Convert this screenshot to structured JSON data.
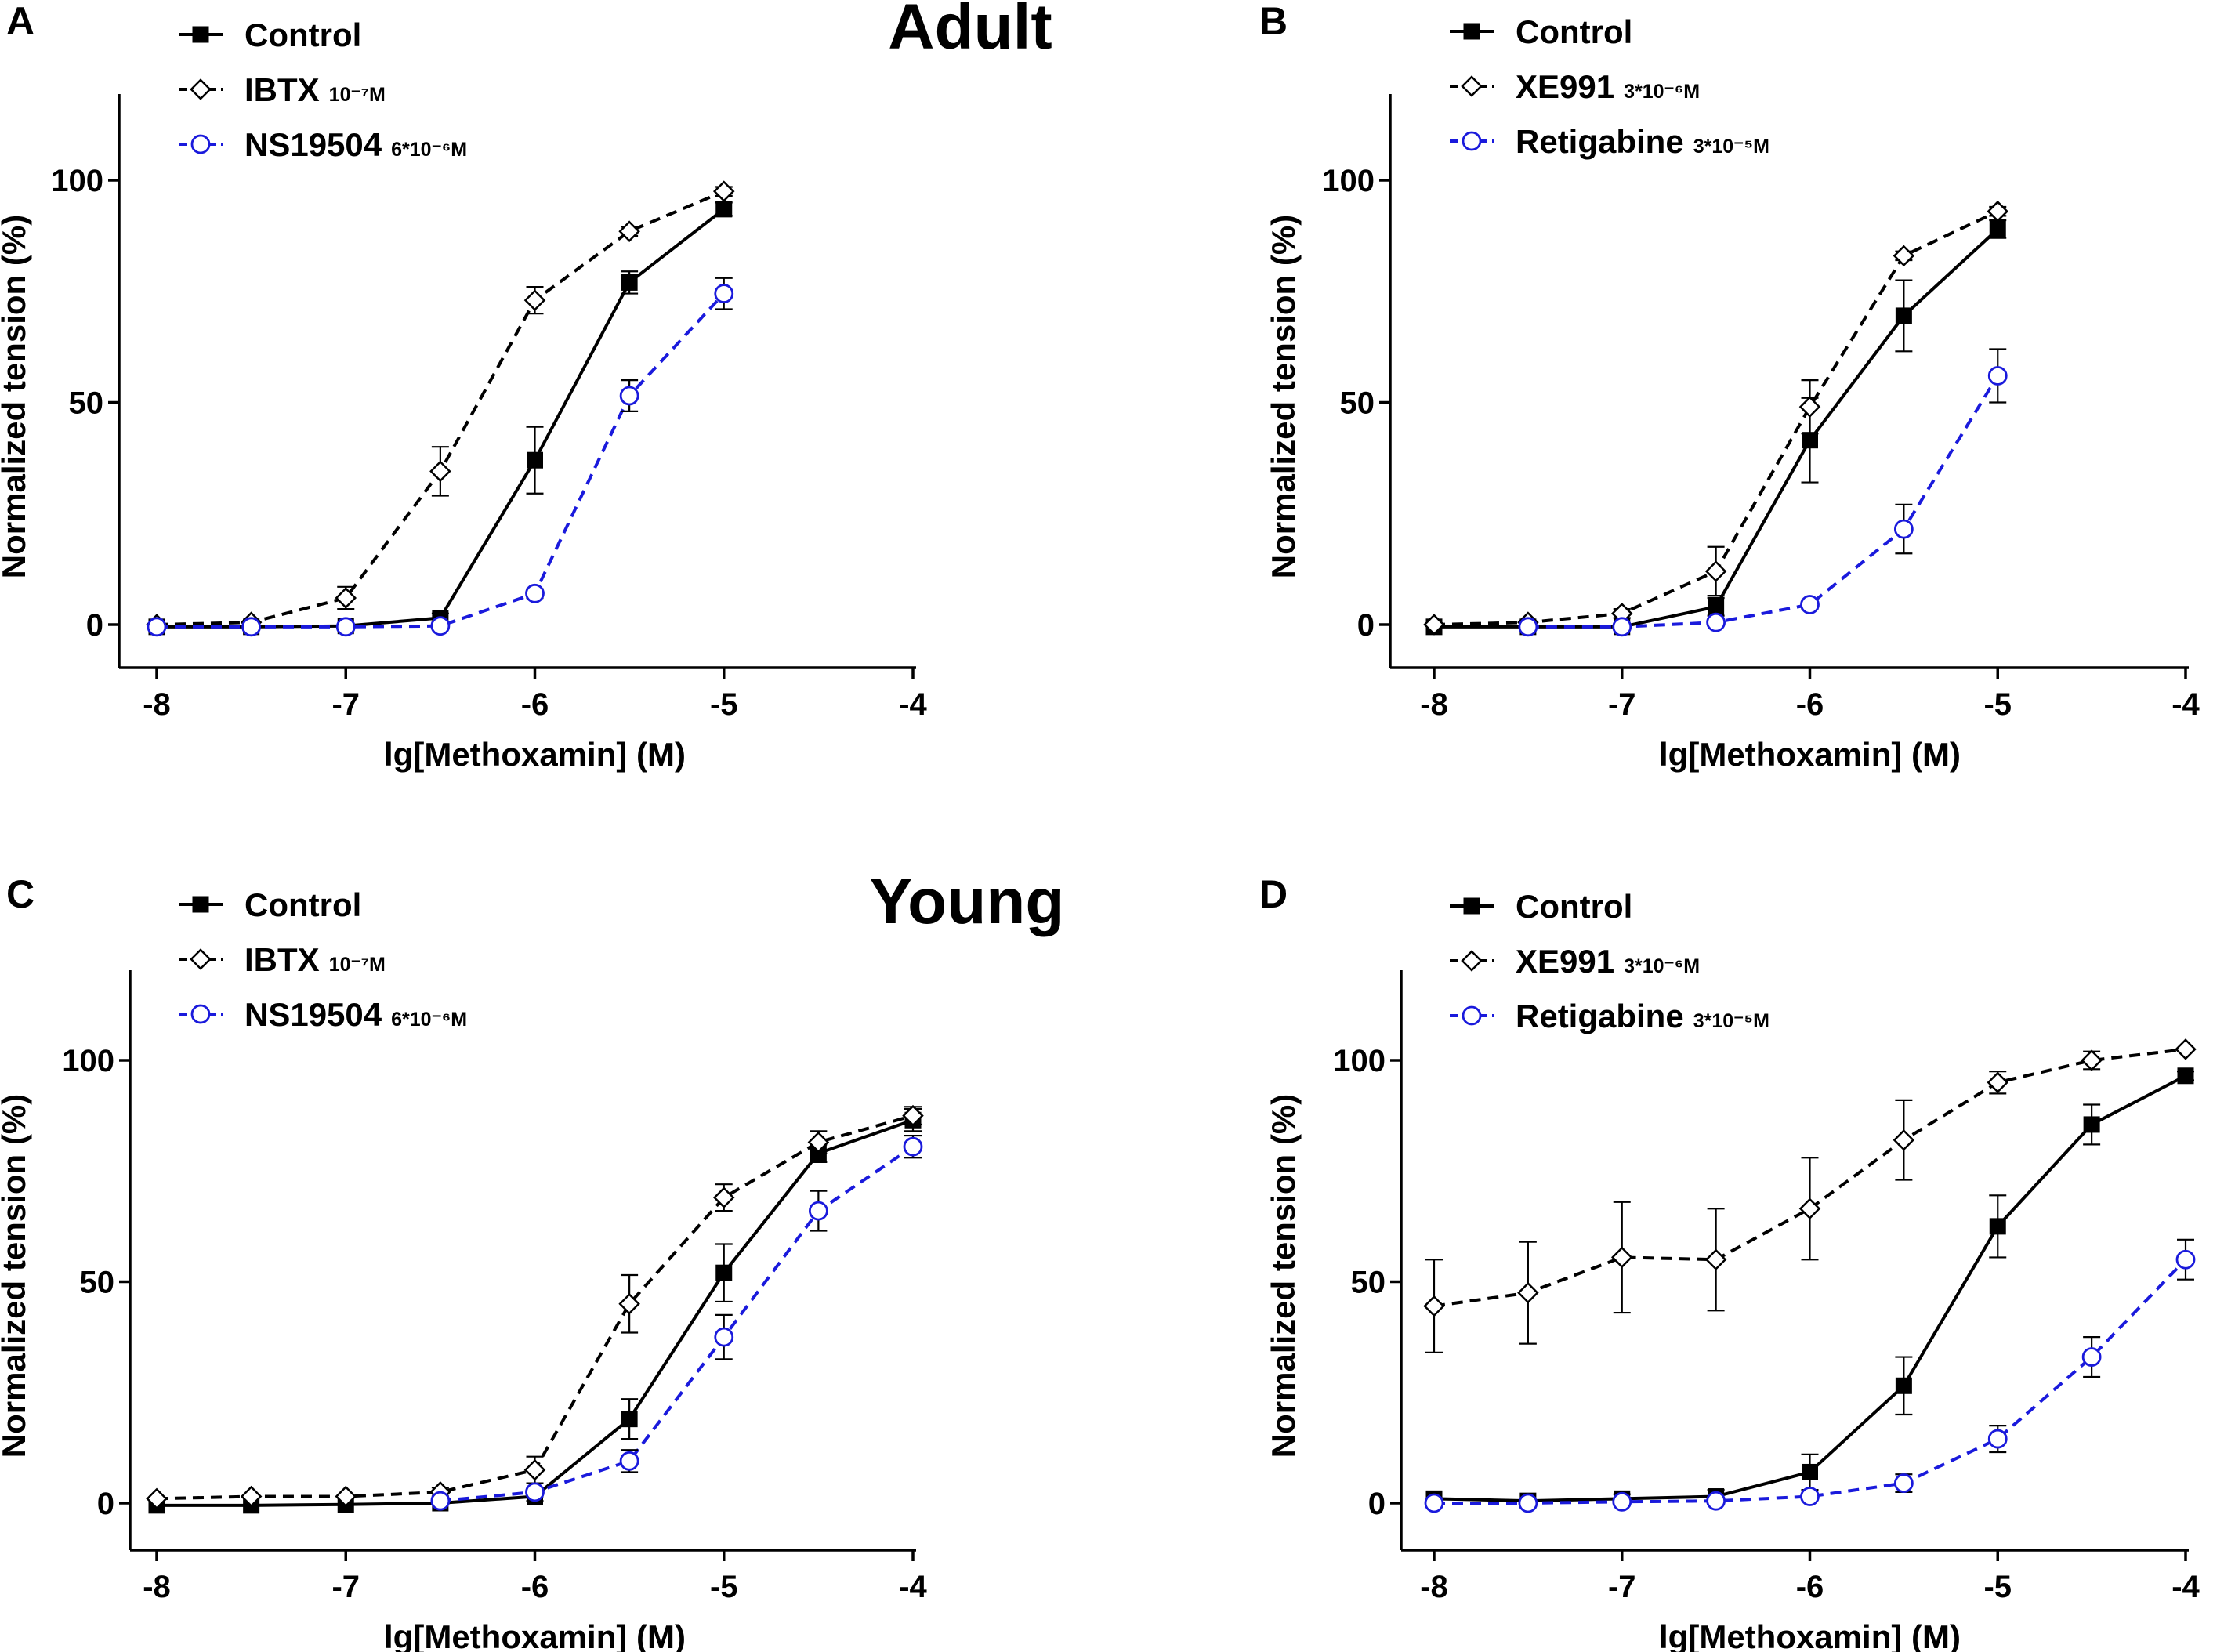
{
  "figure": {
    "title_adult": "Adult",
    "title_young": "Young"
  },
  "colors": {
    "control": "#000000",
    "blocker": "#000000",
    "opener": "#1a1adc"
  },
  "chart_data": [
    {
      "id": "A",
      "panel_label": "A",
      "type": "line",
      "xlabel": "lg[Methoxamin] (M)",
      "ylabel": "Normalized tension (%)",
      "xlim": [
        -8,
        -4
      ],
      "ylim": [
        -5,
        120
      ],
      "xticks": [
        -8,
        -7,
        -6,
        -5,
        -4
      ],
      "yticks": [
        0,
        50,
        100
      ],
      "xtick_labels": [
        "-8",
        "-7",
        "-6",
        "-5",
        "-4"
      ],
      "ytick_labels": [
        "0",
        "50",
        "100"
      ],
      "legend_position": "top-left",
      "series": [
        {
          "name": "Control",
          "sub": "",
          "style": "control",
          "x": [
            -8,
            -7.5,
            -7,
            -6.5,
            -6,
            -5.5,
            -5
          ],
          "y": [
            -0.5,
            -0.5,
            -0.3,
            1.5,
            37,
            77,
            93.5
          ],
          "err": [
            0.5,
            0.5,
            0.5,
            1,
            7.5,
            2.5,
            1.5
          ]
        },
        {
          "name": "IBTX",
          "sub": "10⁻⁷M",
          "style": "blocker",
          "x": [
            -8,
            -7.5,
            -7,
            -6.5,
            -6,
            -5.5,
            -5
          ],
          "y": [
            0,
            0.5,
            6,
            34.5,
            73,
            88.5,
            97.5
          ],
          "err": [
            0.5,
            0.5,
            2.5,
            5.5,
            3,
            1,
            1
          ]
        },
        {
          "name": "NS19504",
          "sub": "6*10⁻⁶M",
          "style": "opener",
          "x": [
            -8,
            -7.5,
            -7,
            -6.5,
            -6,
            -5.5,
            -5
          ],
          "y": [
            -0.5,
            -0.5,
            -0.5,
            -0.3,
            7,
            51.5,
            74.5
          ],
          "err": [
            0.5,
            0.5,
            0.5,
            0.5,
            1,
            3.5,
            3.5
          ]
        }
      ]
    },
    {
      "id": "B",
      "panel_label": "B",
      "type": "line",
      "xlabel": "lg[Methoxamin] (M)",
      "ylabel": "Normalized tension (%)",
      "xlim": [
        -8,
        -4
      ],
      "ylim": [
        -5,
        120
      ],
      "xticks": [
        -8,
        -7,
        -6,
        -5,
        -4
      ],
      "yticks": [
        0,
        50,
        100
      ],
      "xtick_labels": [
        "-8",
        "-7",
        "-6",
        "-5",
        "-4"
      ],
      "ytick_labels": [
        "0",
        "50",
        "100"
      ],
      "legend_position": "top-left",
      "series": [
        {
          "name": "Control",
          "sub": "",
          "style": "control",
          "x": [
            -8,
            -7.5,
            -7,
            -6.5,
            -6,
            -5.5,
            -5
          ],
          "y": [
            -0.5,
            -0.5,
            -0.5,
            4,
            41.5,
            69.5,
            89
          ],
          "err": [
            0.5,
            0.5,
            0.5,
            2,
            9.5,
            8,
            2
          ]
        },
        {
          "name": "XE991",
          "sub": "3*10⁻⁶M",
          "style": "blocker",
          "x": [
            -8,
            -7.5,
            -7,
            -6.5,
            -6,
            -5.5,
            -5
          ],
          "y": [
            0,
            0.5,
            2.5,
            12,
            49,
            83,
            93
          ],
          "err": [
            0.5,
            0.5,
            1,
            5.5,
            6,
            1,
            1
          ]
        },
        {
          "name": "Retigabine",
          "sub": "3*10⁻⁵M",
          "style": "opener",
          "x": [
            -7.5,
            -7,
            -6.5,
            -6,
            -5.5,
            -5
          ],
          "y": [
            -0.5,
            -0.5,
            0.5,
            4.5,
            21.5,
            56
          ],
          "err": [
            0.5,
            0.5,
            0.5,
            1,
            5.5,
            6
          ]
        }
      ]
    },
    {
      "id": "C",
      "panel_label": "C",
      "type": "line",
      "xlabel": "lg[Methoxamin] (M)",
      "ylabel": "Normalized tension (%)",
      "xlim": [
        -8,
        -4
      ],
      "ylim": [
        -5,
        120
      ],
      "xticks": [
        -8,
        -7,
        -6,
        -5,
        -4
      ],
      "yticks": [
        0,
        50,
        100
      ],
      "xtick_labels": [
        "-8",
        "-7",
        "-6",
        "-5",
        "-4"
      ],
      "ytick_labels": [
        "0",
        "50",
        "100"
      ],
      "legend_position": "top-left",
      "series": [
        {
          "name": "Control",
          "sub": "",
          "style": "control",
          "x": [
            -8,
            -7.5,
            -7,
            -6.5,
            -6,
            -5.5,
            -5,
            -4.5,
            -4
          ],
          "y": [
            -0.5,
            -0.5,
            -0.3,
            0,
            1.5,
            19,
            52,
            79,
            86.5
          ],
          "err": [
            0.5,
            0.5,
            0.5,
            0.5,
            1,
            4.5,
            6.5,
            2,
            2.5
          ]
        },
        {
          "name": "IBTX",
          "sub": "10⁻⁷M",
          "style": "blocker",
          "x": [
            -8,
            -7.5,
            -7,
            -6.5,
            -6,
            -5.5,
            -5,
            -4.5,
            -4
          ],
          "y": [
            1,
            1.5,
            1.5,
            2.5,
            7.5,
            45,
            69,
            81.5,
            87.5
          ],
          "err": [
            0.5,
            0.5,
            0.5,
            1,
            3,
            6.5,
            3,
            2.5,
            2
          ]
        },
        {
          "name": "NS19504",
          "sub": "6*10⁻⁶M",
          "style": "opener",
          "x": [
            -6.5,
            -6,
            -5.5,
            -5,
            -4.5,
            -4
          ],
          "y": [
            0.5,
            2.5,
            9.5,
            37.5,
            66,
            80.5
          ],
          "err": [
            0.5,
            1,
            2.5,
            5,
            4.5,
            2.5
          ]
        }
      ]
    },
    {
      "id": "D",
      "panel_label": "D",
      "type": "line",
      "xlabel": "lg[Methoxamin] (M)",
      "ylabel": "Normalized tension (%)",
      "xlim": [
        -8,
        -4
      ],
      "ylim": [
        -5,
        120
      ],
      "xticks": [
        -8,
        -7,
        -6,
        -5,
        -4
      ],
      "yticks": [
        0,
        50,
        100
      ],
      "xtick_labels": [
        "-8",
        "-7",
        "-6",
        "-5",
        "-4"
      ],
      "ytick_labels": [
        "0",
        "50",
        "100"
      ],
      "legend_position": "top-left",
      "series": [
        {
          "name": "Control",
          "sub": "",
          "style": "control",
          "x": [
            -8,
            -7.5,
            -7,
            -6.5,
            -6,
            -5.5,
            -5,
            -4.5,
            -4
          ],
          "y": [
            1,
            0.5,
            1,
            1.5,
            7,
            26.5,
            62.5,
            85.5,
            96.5
          ],
          "err": [
            0.5,
            0.5,
            1,
            1.5,
            4,
            6.5,
            7,
            4.5,
            1
          ]
        },
        {
          "name": "XE991",
          "sub": "3*10⁻⁶M",
          "style": "blocker",
          "x": [
            -8,
            -7.5,
            -7,
            -6.5,
            -6,
            -5.5,
            -5,
            -4.5,
            -4
          ],
          "y": [
            44.5,
            47.5,
            55.5,
            55,
            66.5,
            82,
            95,
            100,
            102.5
          ],
          "err": [
            10.5,
            11.5,
            12.5,
            11.5,
            11.5,
            9,
            2.5,
            2,
            0.5
          ]
        },
        {
          "name": "Retigabine",
          "sub": "3*10⁻⁵M",
          "style": "opener",
          "x": [
            -8,
            -7.5,
            -7,
            -6.5,
            -6,
            -5.5,
            -5,
            -4.5,
            -4
          ],
          "y": [
            0,
            0,
            0.3,
            0.5,
            1.5,
            4.5,
            14.5,
            33,
            55
          ],
          "err": [
            0.5,
            0.5,
            0.5,
            0.5,
            0.5,
            2,
            3,
            4.5,
            4.5
          ]
        }
      ]
    }
  ]
}
